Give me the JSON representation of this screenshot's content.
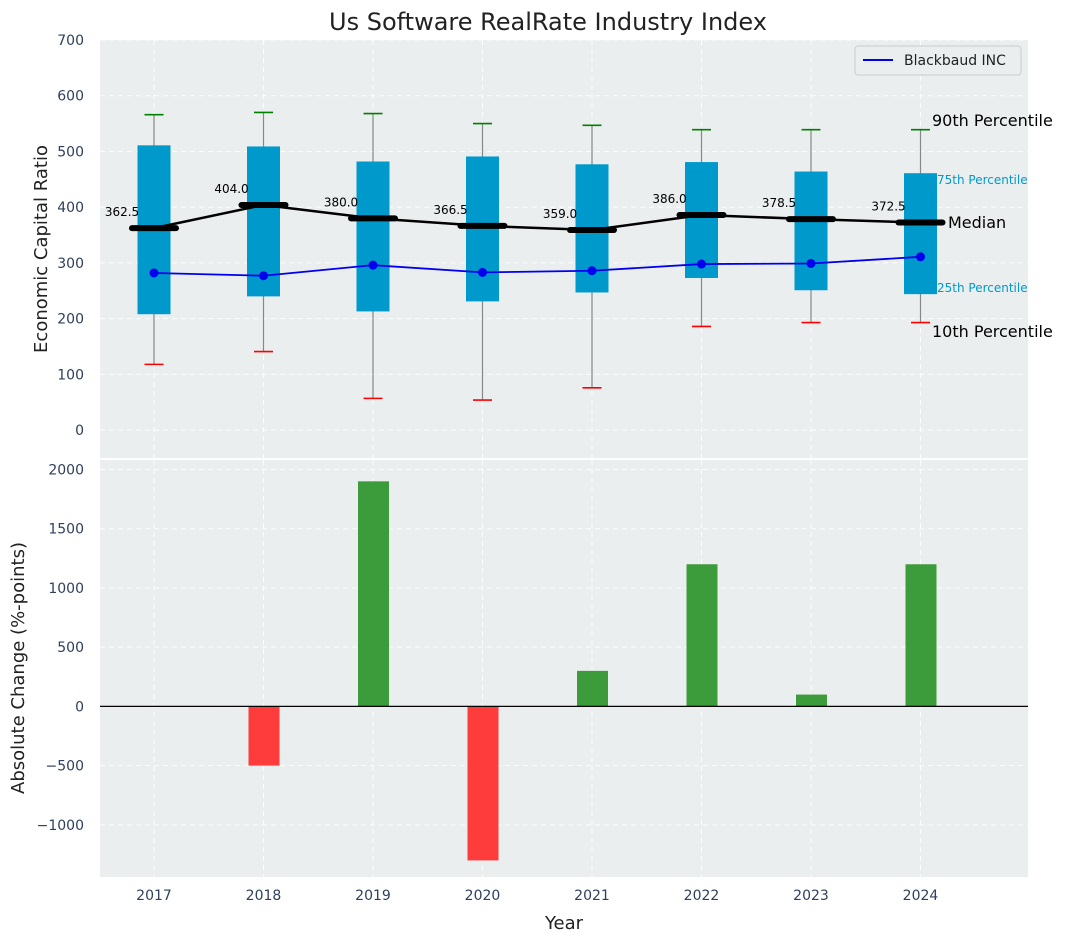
{
  "chart_data": [
    {
      "type": "box",
      "title": "Us Software RealRate Industry Index",
      "ylabel": "Economic Capital Ratio",
      "ylim": [
        -50,
        700
      ],
      "yticks": [
        0,
        100,
        200,
        300,
        400,
        500,
        600,
        700
      ],
      "categories": [
        "2017",
        "2018",
        "2019",
        "2020",
        "2021",
        "2022",
        "2023",
        "2024"
      ],
      "p10": [
        118,
        141,
        57,
        54,
        76,
        186,
        193,
        193
      ],
      "p25": [
        208,
        240,
        213,
        231,
        247,
        273,
        251,
        244
      ],
      "median": [
        362.5,
        404.0,
        380.0,
        366.5,
        359.0,
        386.0,
        378.5,
        372.5
      ],
      "median_labels": [
        "362.5",
        "404.0",
        "380.0",
        "366.5",
        "359.0",
        "386.0",
        "378.5",
        "372.5"
      ],
      "p75": [
        511,
        509,
        482,
        491,
        477,
        481,
        464,
        461
      ],
      "p90": [
        566,
        570,
        568,
        550,
        547,
        539,
        539,
        539
      ],
      "series": [
        {
          "name": "Blackbaud INC",
          "values": [
            282,
            277,
            296,
            283,
            286,
            298,
            299,
            311
          ]
        }
      ],
      "percentile_labels": {
        "p90": "90th Percentile",
        "p75": "75th Percentile",
        "median": "Median",
        "p25": "25th Percentile",
        "p10": "10th Percentile"
      },
      "legend": {
        "position": "top-right",
        "entries": [
          "Blackbaud INC"
        ]
      },
      "colors": {
        "box": "#0099cc",
        "median": "#000000",
        "series": "#0000ee",
        "p90_cap": "#008000",
        "p10_cap": "#ff0000",
        "background": "#eaeeee"
      }
    },
    {
      "type": "bar",
      "xlabel": "Year",
      "ylabel": "Absolute Change (%-points)",
      "ylim": [
        -1440,
        2080
      ],
      "yticks": [
        -1000,
        -500,
        0,
        500,
        1000,
        1500,
        2000
      ],
      "ytick_labels": [
        "−1000",
        "−500",
        "0",
        "500",
        "1000",
        "1500",
        "2000"
      ],
      "categories": [
        "2017",
        "2018",
        "2019",
        "2020",
        "2021",
        "2022",
        "2023",
        "2024"
      ],
      "values": [
        0,
        -500,
        1900,
        -1300,
        300,
        1200,
        100,
        1200
      ],
      "colors": {
        "positive": "#3c9c3c",
        "negative": "#ff3c3c"
      }
    }
  ]
}
